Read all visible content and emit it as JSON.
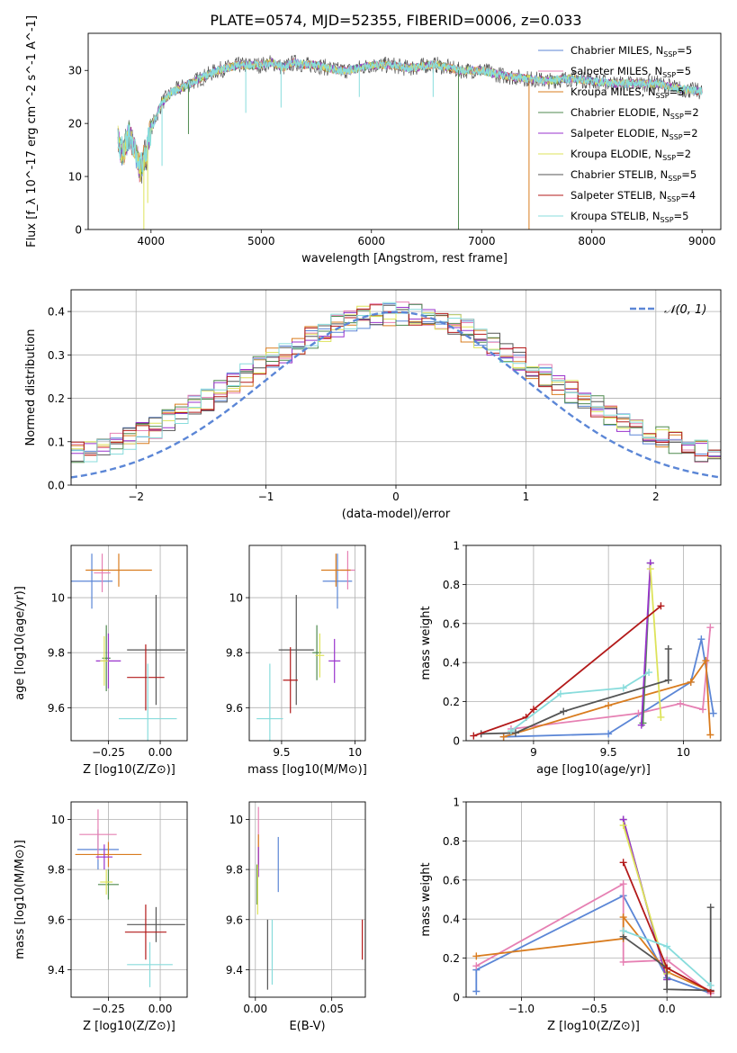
{
  "figure": {
    "title": "PLATE=0574, MJD=52355, FIBERID=0006, z=0.033"
  },
  "models": [
    {
      "name": "Chabrier MILES, N$_{SSP}$=5",
      "label": "Chabrier MILES, N",
      "nssp": "=5",
      "color": "#5b86d6"
    },
    {
      "name": "Salpeter MILES, N$_{SSP}$=5",
      "label": "Salpeter MILES, N",
      "nssp": "=5",
      "color": "#e680b3"
    },
    {
      "name": "Kroupa MILES, N$_{SSP}$=5",
      "label": "Kroupa MILES, N",
      "nssp": "=5",
      "color": "#d97c1f"
    },
    {
      "name": "Chabrier ELODIE, N$_{SSP}$=2",
      "label": "Chabrier ELODIE, N",
      "nssp": "=2",
      "color": "#4f8a4f"
    },
    {
      "name": "Salpeter ELODIE, N$_{SSP}$=2",
      "label": "Salpeter ELODIE, N",
      "nssp": "=2",
      "color": "#9933cc"
    },
    {
      "name": "Kroupa ELODIE, N$_{SSP}$=2",
      "label": "Kroupa ELODIE, N",
      "nssp": "=2",
      "color": "#dde35a"
    },
    {
      "name": "Chabrier STELIB, N$_{SSP}$=5",
      "label": "Chabrier STELIB, N",
      "nssp": "=5",
      "color": "#555555"
    },
    {
      "name": "Salpeter STELIB, N$_{SSP}$=4",
      "label": "Salpeter STELIB, N",
      "nssp": "=4",
      "color": "#b31a1a"
    },
    {
      "name": "Kroupa STELIB, N$_{SSP}$=5",
      "label": "Kroupa STELIB, N",
      "nssp": "=5",
      "color": "#88dcdc"
    }
  ],
  "chart_data": [
    {
      "id": "spectrum",
      "type": "line",
      "xlabel": "wavelength [Angstrom, rest frame]",
      "ylabel": "Flux [f_λ 10^-17 erg cm^-2 s^-1 A^-1]",
      "xlim": [
        3430,
        9170
      ],
      "ylim": [
        0,
        37
      ],
      "xticks": [
        4000,
        5000,
        6000,
        7000,
        8000,
        9000
      ],
      "yticks": [
        0,
        10,
        20,
        30
      ],
      "grid": false,
      "legend": "right",
      "x": [
        3700,
        3750,
        3800,
        3850,
        3900,
        3950,
        4000,
        4100,
        4200,
        4300,
        4400,
        4500,
        4600,
        4700,
        4800,
        4900,
        5000,
        5100,
        5200,
        5300,
        5400,
        5500,
        5600,
        5700,
        5800,
        5900,
        6000,
        6100,
        6200,
        6300,
        6400,
        6500,
        6600,
        6700,
        6800,
        6900,
        7000,
        7200,
        7400,
        7600,
        7800,
        8000,
        8200,
        8400,
        8600,
        8800,
        9000
      ],
      "y": [
        17,
        14,
        18,
        15,
        11,
        14,
        19,
        24,
        26,
        27,
        28,
        29,
        30,
        30.5,
        31,
        31,
        31,
        31.5,
        30.5,
        31.5,
        31,
        31,
        30.5,
        30,
        30,
        30.5,
        31,
        31,
        31,
        30.5,
        30.5,
        31,
        31,
        30.5,
        30,
        30,
        30,
        29,
        28.5,
        28,
        28.5,
        28,
        27.5,
        27.5,
        27.5,
        26.5,
        26
      ],
      "dips": [
        {
          "x": 3935,
          "y": 0,
          "series": 5
        },
        {
          "x": 3970,
          "y": 5,
          "series": 5
        },
        {
          "x": 4100,
          "y": 12,
          "series": 8
        },
        {
          "x": 4340,
          "y": 18,
          "series": 3
        },
        {
          "x": 4860,
          "y": 22,
          "series": 8
        },
        {
          "x": 5180,
          "y": 23,
          "series": 8
        },
        {
          "x": 5890,
          "y": 25,
          "series": 8
        },
        {
          "x": 6560,
          "y": 25,
          "series": 8
        },
        {
          "x": 6790,
          "y": 0,
          "series": 3
        },
        {
          "x": 7430,
          "y": 0,
          "series": 2
        }
      ]
    },
    {
      "id": "residuals",
      "type": "line",
      "xlabel": "(data-model)/error",
      "ylabel": "Normed distribution",
      "xlim": [
        -2.5,
        2.5
      ],
      "ylim": [
        0,
        0.45
      ],
      "xticks": [
        -2,
        -1,
        0,
        1,
        2
      ],
      "xtick_labels": [
        "−2",
        "−1",
        "0",
        "1",
        "2"
      ],
      "yticks": [
        0.0,
        0.1,
        0.2,
        0.3,
        0.4
      ],
      "ytick_labels": [
        "0.0",
        "0.1",
        "0.2",
        "0.3",
        "0.4"
      ],
      "grid": true,
      "legend": "top-right",
      "normal_curve": {
        "label": "𝒩(0, 1)",
        "mean": 0,
        "sigma": 1,
        "color": "#5b86d6"
      },
      "bin_width": 0.1
    },
    {
      "id": "age-vs-Z",
      "type": "scatter",
      "xlabel": "Z [log10(Z/Z⊙)]",
      "ylabel": "age  [log10(age/yr)]",
      "xlim": [
        -0.43,
        0.13
      ],
      "ylim": [
        9.48,
        10.19
      ],
      "xticks": [
        -0.25,
        0.0
      ],
      "xtick_labels": [
        "−0.25",
        "0.00"
      ],
      "yticks": [
        9.6,
        9.8,
        10.0
      ],
      "grid": true,
      "points": [
        {
          "series": 0,
          "x": -0.33,
          "y": 10.06,
          "xerr": 0.1,
          "yerr": 0.1
        },
        {
          "series": 1,
          "x": -0.28,
          "y": 10.09,
          "xerr": 0.04,
          "yerr": 0.07
        },
        {
          "series": 2,
          "x": -0.2,
          "y": 10.1,
          "xerr": 0.16,
          "yerr": 0.06
        },
        {
          "series": 3,
          "x": -0.26,
          "y": 9.78,
          "xerr": 0.02,
          "yerr": 0.12
        },
        {
          "series": 4,
          "x": -0.25,
          "y": 9.77,
          "xerr": 0.06,
          "yerr": 0.1
        },
        {
          "series": 5,
          "x": -0.27,
          "y": 9.77,
          "xerr": 0.02,
          "yerr": 0.09
        },
        {
          "series": 6,
          "x": -0.02,
          "y": 9.81,
          "xerr": 0.14,
          "yerr": 0.2
        },
        {
          "series": 7,
          "x": -0.07,
          "y": 9.71,
          "xerr": 0.09,
          "yerr": 0.12
        },
        {
          "series": 8,
          "x": -0.06,
          "y": 9.56,
          "xerr": 0.14,
          "yerr": 0.2
        }
      ]
    },
    {
      "id": "age-vs-mass",
      "type": "scatter",
      "xlabel": "mass [log10(M/M⊙)]",
      "ylabel": "",
      "xlim": [
        9.28,
        10.07
      ],
      "ylim": [
        9.48,
        10.19
      ],
      "xticks": [
        9.5,
        10.0
      ],
      "yticks": [
        9.6,
        9.8,
        10.0
      ],
      "grid": true,
      "points": [
        {
          "series": 0,
          "x": 9.88,
          "y": 10.06,
          "xerr": 0.1,
          "yerr": 0.1
        },
        {
          "series": 1,
          "x": 9.95,
          "y": 10.1,
          "xerr": 0.05,
          "yerr": 0.07
        },
        {
          "series": 2,
          "x": 9.87,
          "y": 10.1,
          "xerr": 0.1,
          "yerr": 0.06
        },
        {
          "series": 3,
          "x": 9.74,
          "y": 9.8,
          "xerr": 0.03,
          "yerr": 0.1
        },
        {
          "series": 4,
          "x": 9.86,
          "y": 9.77,
          "xerr": 0.04,
          "yerr": 0.08
        },
        {
          "series": 5,
          "x": 9.76,
          "y": 9.79,
          "xerr": 0.03,
          "yerr": 0.08
        },
        {
          "series": 6,
          "x": 9.6,
          "y": 9.81,
          "xerr": 0.12,
          "yerr": 0.2
        },
        {
          "series": 7,
          "x": 9.56,
          "y": 9.7,
          "xerr": 0.05,
          "yerr": 0.12
        },
        {
          "series": 8,
          "x": 9.42,
          "y": 9.56,
          "xerr": 0.09,
          "yerr": 0.2
        }
      ]
    },
    {
      "id": "weight-vs-age",
      "type": "line",
      "xlabel": "age  [log10(age/yr)]",
      "ylabel": "mass weight",
      "xlim": [
        8.55,
        10.25
      ],
      "ylim": [
        0,
        1
      ],
      "xticks": [
        9.0,
        9.5,
        10.0
      ],
      "yticks": [
        0.0,
        0.2,
        0.4,
        0.6,
        0.8,
        1.0
      ],
      "grid": true,
      "series": [
        {
          "series": 0,
          "x": [
            8.8,
            9.5,
            10.05,
            10.12,
            10.2
          ],
          "y": [
            0.02,
            0.035,
            0.3,
            0.52,
            0.14
          ]
        },
        {
          "series": 1,
          "x": [
            8.85,
            9.7,
            9.98,
            10.13,
            10.18
          ],
          "y": [
            0.06,
            0.14,
            0.19,
            0.16,
            0.58
          ]
        },
        {
          "series": 2,
          "x": [
            8.8,
            9.5,
            10.05,
            10.15,
            10.18
          ],
          "y": [
            0.02,
            0.18,
            0.3,
            0.41,
            0.03
          ]
        },
        {
          "series": 3,
          "x": [
            9.73,
            9.78
          ],
          "y": [
            0.09,
            0.91
          ]
        },
        {
          "series": 4,
          "x": [
            9.72,
            9.78
          ],
          "y": [
            0.08,
            0.91
          ]
        },
        {
          "series": 5,
          "x": [
            9.78,
            9.85
          ],
          "y": [
            0.88,
            0.12
          ]
        },
        {
          "series": 6,
          "x": [
            8.65,
            8.88,
            9.2,
            9.9,
            9.9
          ],
          "y": [
            0.035,
            0.04,
            0.15,
            0.31,
            0.47
          ]
        },
        {
          "series": 7,
          "x": [
            8.6,
            8.95,
            9.0,
            9.85
          ],
          "y": [
            0.025,
            0.12,
            0.16,
            0.69
          ]
        },
        {
          "series": 8,
          "x": [
            8.85,
            9.18,
            9.6,
            9.77
          ],
          "y": [
            0.05,
            0.24,
            0.27,
            0.35
          ]
        }
      ]
    },
    {
      "id": "mass-vs-Z",
      "type": "scatter",
      "xlabel": "Z [log10(Z/Z⊙)]",
      "ylabel": "mass [log10(M/M⊙)]",
      "xlim": [
        -0.43,
        0.13
      ],
      "ylim": [
        9.29,
        10.07
      ],
      "xticks": [
        -0.25,
        0.0
      ],
      "xtick_labels": [
        "−0.25",
        "0.00"
      ],
      "yticks": [
        9.4,
        9.6,
        9.8,
        10.0
      ],
      "grid": true,
      "points": [
        {
          "series": 0,
          "x": -0.3,
          "y": 9.88,
          "xerr": 0.1,
          "yerr": 0.08
        },
        {
          "series": 1,
          "x": -0.3,
          "y": 9.94,
          "xerr": 0.09,
          "yerr": 0.1
        },
        {
          "series": 2,
          "x": -0.25,
          "y": 9.86,
          "xerr": 0.16,
          "yerr": 0.05
        },
        {
          "series": 3,
          "x": -0.25,
          "y": 9.74,
          "xerr": 0.05,
          "yerr": 0.06
        },
        {
          "series": 4,
          "x": -0.27,
          "y": 9.85,
          "xerr": 0.04,
          "yerr": 0.05
        },
        {
          "series": 5,
          "x": -0.26,
          "y": 9.75,
          "xerr": 0.03,
          "yerr": 0.05
        },
        {
          "series": 6,
          "x": -0.02,
          "y": 9.58,
          "xerr": 0.14,
          "yerr": 0.07
        },
        {
          "series": 7,
          "x": -0.07,
          "y": 9.55,
          "xerr": 0.1,
          "yerr": 0.11
        },
        {
          "series": 8,
          "x": -0.05,
          "y": 9.42,
          "xerr": 0.11,
          "yerr": 0.09
        }
      ]
    },
    {
      "id": "mass-vs-EBV",
      "type": "scatter",
      "xlabel": "E(B-V)",
      "ylabel": "",
      "xlim": [
        -0.004,
        0.072
      ],
      "ylim": [
        9.29,
        10.07
      ],
      "xticks": [
        0.0,
        0.05
      ],
      "xtick_labels": [
        "0.00",
        "0.05"
      ],
      "yticks": [
        9.4,
        9.6,
        9.8,
        10.0
      ],
      "grid": true,
      "points": [
        {
          "series": 0,
          "x": 0.015,
          "y": 9.82,
          "xerr": 0,
          "yerr": 0.11
        },
        {
          "series": 1,
          "x": 0.002,
          "y": 9.93,
          "xerr": 0,
          "yerr": 0.12
        },
        {
          "series": 2,
          "x": 0.002,
          "y": 9.88,
          "xerr": 0,
          "yerr": 0.06
        },
        {
          "series": 3,
          "x": 0.001,
          "y": 9.74,
          "xerr": 0,
          "yerr": 0.08
        },
        {
          "series": 4,
          "x": 0.002,
          "y": 9.83,
          "xerr": 0,
          "yerr": 0.06
        },
        {
          "series": 5,
          "x": 0.0015,
          "y": 9.72,
          "xerr": 0,
          "yerr": 0.1
        },
        {
          "series": 6,
          "x": 0.008,
          "y": 9.46,
          "xerr": 0,
          "yerr": 0.14
        },
        {
          "series": 7,
          "x": 0.07,
          "y": 9.52,
          "xerr": 0,
          "yerr": 0.08
        },
        {
          "series": 8,
          "x": 0.011,
          "y": 9.47,
          "xerr": 0,
          "yerr": 0.13
        }
      ]
    },
    {
      "id": "weight-vs-Z",
      "type": "line",
      "xlabel": "Z [log10(Z/Z⊙)]",
      "ylabel": "mass weight",
      "xlim": [
        -1.38,
        0.37
      ],
      "ylim": [
        0,
        1
      ],
      "xticks": [
        -1.0,
        -0.5,
        0.0
      ],
      "xtick_labels": [
        "−1.0",
        "−0.5",
        "0.0"
      ],
      "yticks": [
        0.0,
        0.2,
        0.4,
        0.6,
        0.8,
        1.0
      ],
      "grid": true,
      "series": [
        {
          "series": 0,
          "x": [
            -1.31,
            -1.31,
            -0.3,
            0.0,
            0.3
          ],
          "y": [
            0.03,
            0.14,
            0.52,
            0.1,
            0.02
          ]
        },
        {
          "series": 1,
          "x": [
            -1.31,
            -0.3,
            -0.3,
            0.0,
            0.3
          ],
          "y": [
            0.16,
            0.58,
            0.18,
            0.19,
            0.02
          ]
        },
        {
          "series": 2,
          "x": [
            -1.31,
            -0.3,
            -0.3,
            0.0,
            0.3
          ],
          "y": [
            0.21,
            0.3,
            0.41,
            0.13,
            0.03
          ]
        },
        {
          "series": 3,
          "x": [
            -0.3,
            0.0
          ],
          "y": [
            0.91,
            0.09
          ]
        },
        {
          "series": 4,
          "x": [
            -0.3,
            0.0
          ],
          "y": [
            0.91,
            0.09
          ]
        },
        {
          "series": 5,
          "x": [
            -0.3,
            0.0
          ],
          "y": [
            0.88,
            0.12
          ]
        },
        {
          "series": 6,
          "x": [
            -0.3,
            0.0,
            0.0,
            0.3,
            0.3
          ],
          "y": [
            0.31,
            0.15,
            0.04,
            0.035,
            0.46
          ]
        },
        {
          "series": 7,
          "x": [
            -0.3,
            0.0,
            0.3
          ],
          "y": [
            0.69,
            0.15,
            0.03
          ]
        },
        {
          "series": 8,
          "x": [
            -0.3,
            0.0,
            0.3
          ],
          "y": [
            0.34,
            0.26,
            0.06
          ]
        }
      ]
    }
  ]
}
